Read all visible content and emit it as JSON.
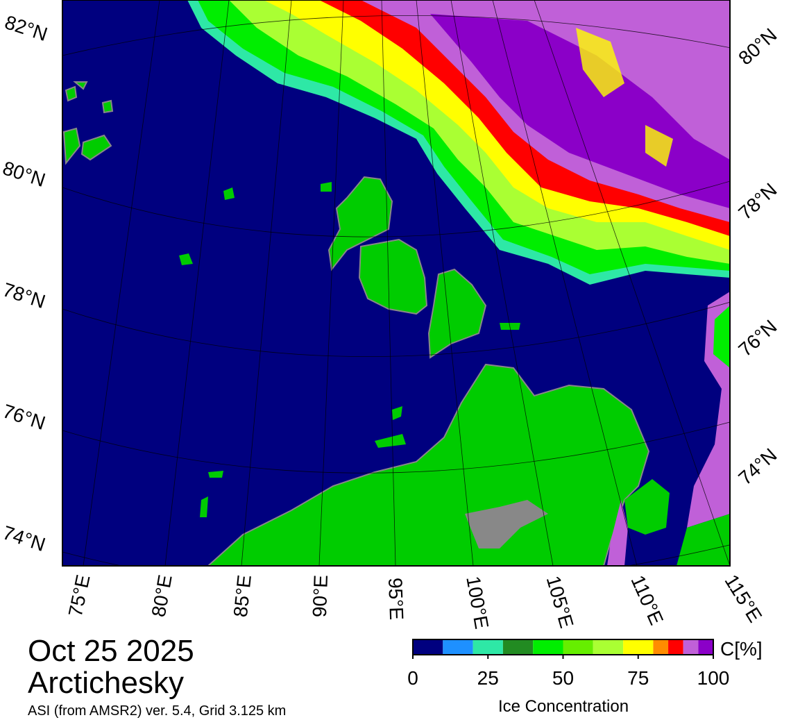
{
  "map": {
    "date": "Oct 25 2025",
    "region": "Arctichesky",
    "source": "ASI (from AMSR2) ver. 5.4,  Grid 3.125 km",
    "lat_labels_left": [
      "82°N",
      "80°N",
      "78°N",
      "76°N",
      "74°N"
    ],
    "lat_labels_right": [
      "80°N",
      "78°N",
      "76°N",
      "74°N"
    ],
    "lon_labels": [
      "75°E",
      "80°E",
      "85°E",
      "90°E",
      "95°E",
      "100°E",
      "105°E",
      "110°E",
      "115°E"
    ]
  },
  "colorbar": {
    "unit": "C[%]",
    "title": "Ice Concentration",
    "lim": [
      0,
      100
    ],
    "ticks": [
      0,
      25,
      50,
      75,
      100
    ],
    "bounds": [
      0,
      10,
      20,
      30,
      40,
      50,
      60,
      70,
      80,
      85,
      90,
      95,
      100
    ],
    "colors": [
      "#00007f",
      "#1e90ff",
      "#2ee8a6",
      "#228b22",
      "#00ee00",
      "#66ee00",
      "#aaff33",
      "#ffff00",
      "#ff8c00",
      "#ff0000",
      "#c060d8",
      "#8b00c8"
    ]
  }
}
